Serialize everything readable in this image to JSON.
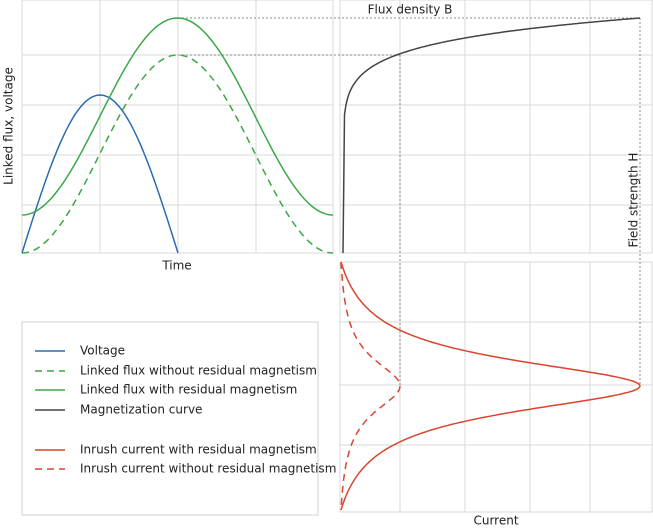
{
  "labels": {
    "y_axis": "Linked flux, voltage",
    "x_axis_top": "Time",
    "flux_density": "Flux density B",
    "field_strength": "Field strength H",
    "x_axis_bottom": "Current"
  },
  "legend": [
    "Voltage",
    "Linked flux without residual magnetism",
    "Linked flux with residual magnetism",
    "Magnetization curve",
    "Inrush current with residual magnetism",
    "Inrush current without residual magnetism"
  ]
}
